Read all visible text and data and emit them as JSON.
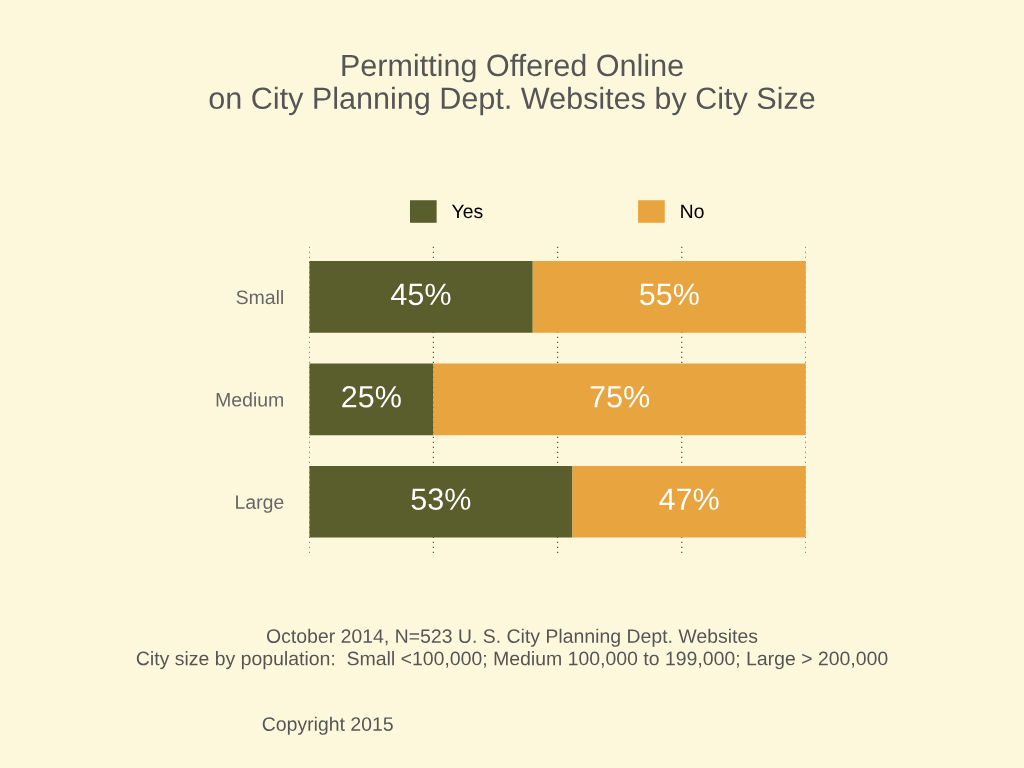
{
  "chart_data": {
    "type": "bar",
    "orientation": "horizontal",
    "stacked": true,
    "title": "Permitting Offered Online\non City Planning Dept. Websites by City Size",
    "categories": [
      "Small",
      "Medium",
      "Large"
    ],
    "series": [
      {
        "name": "Yes",
        "color": "#5a5e2d",
        "values": [
          45,
          25,
          53
        ],
        "value_labels": [
          "45%",
          "25%",
          "53%"
        ]
      },
      {
        "name": "No",
        "color": "#e8a53f",
        "values": [
          55,
          75,
          47
        ],
        "value_labels": [
          "55%",
          "75%",
          "47%"
        ]
      }
    ],
    "grid": "x",
    "legend": "top",
    "tick_labels": "y",
    "annotations": [
      "October 2014, N=523 U. S. City Planning Dept. Websites\nCity size by population:  Small <100,000; Medium 100,000 to 199,000; Large > 200,000",
      "Copyright 2015"
    ]
  }
}
